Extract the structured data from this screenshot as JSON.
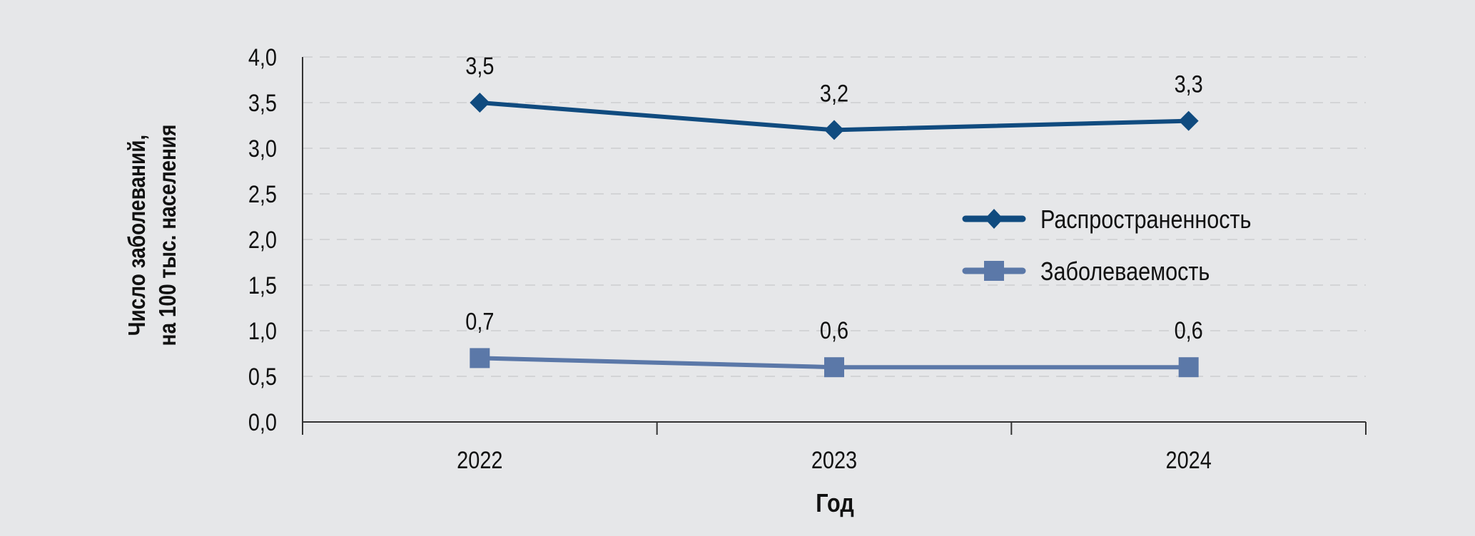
{
  "chart_data": {
    "type": "line",
    "title": "",
    "xlabel": "Год",
    "ylabel_lines": [
      "Число заболеваний,",
      "на 100 тыс. населения"
    ],
    "categories": [
      "2022",
      "2023",
      "2024"
    ],
    "ylim": [
      0,
      4
    ],
    "yticks": [
      "0,0",
      "0,5",
      "1,0",
      "1,5",
      "2,0",
      "2,5",
      "3,0",
      "3,5",
      "4,0"
    ],
    "grid": true,
    "legend_position": "right-middle",
    "series": [
      {
        "name": "Распространенность",
        "values": [
          3.5,
          3.2,
          3.3
        ],
        "labels": [
          "3,5",
          "3,2",
          "3,3"
        ],
        "color": "#104b7f",
        "marker": "diamond"
      },
      {
        "name": "Заболеваемость",
        "values": [
          0.7,
          0.6,
          0.6
        ],
        "labels": [
          "0,7",
          "0,6",
          "0,6"
        ],
        "color": "#5b78a8",
        "marker": "square"
      }
    ]
  }
}
